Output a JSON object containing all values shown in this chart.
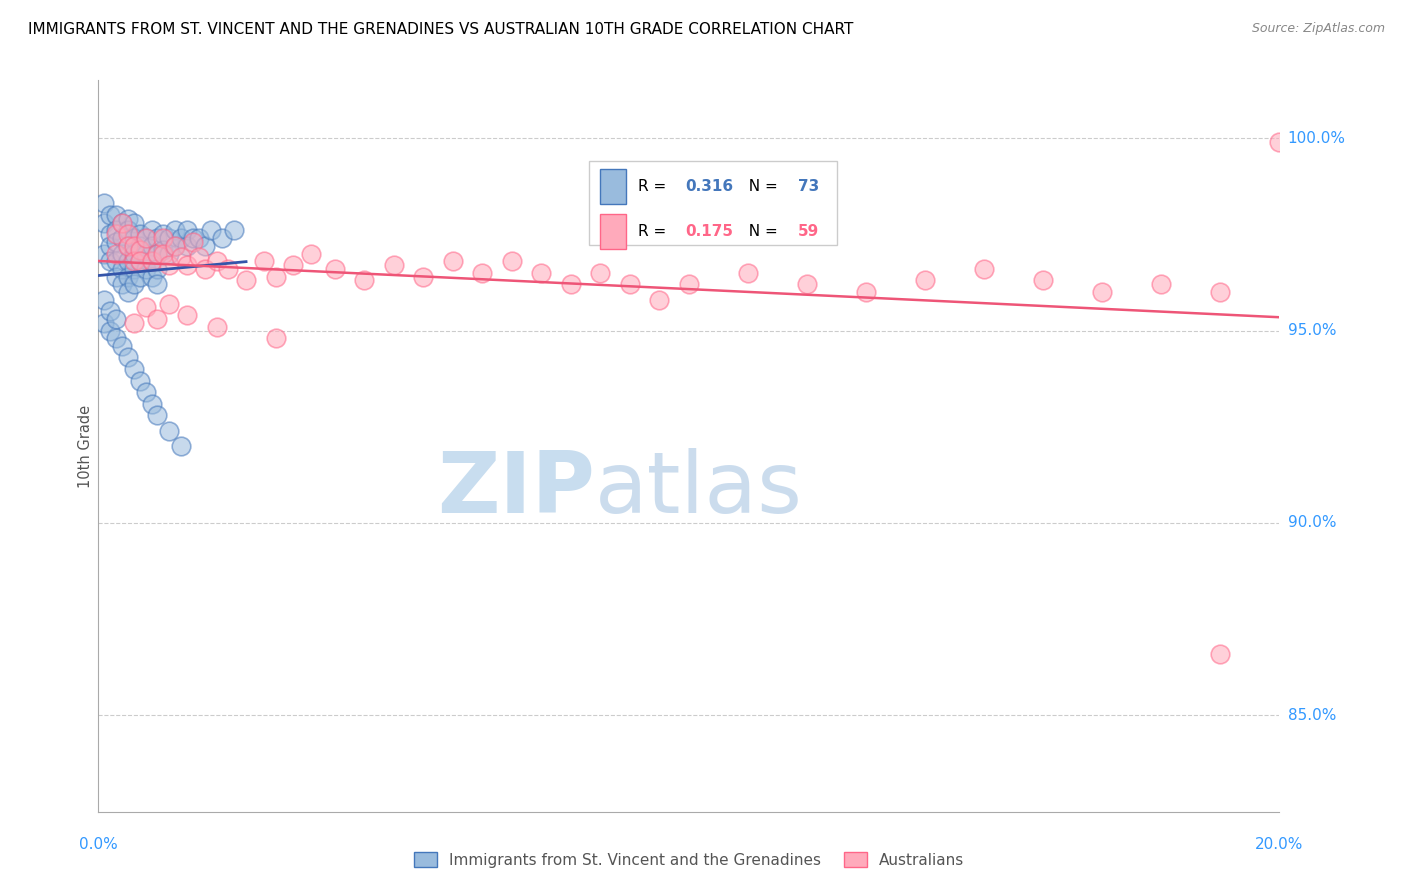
{
  "title": "IMMIGRANTS FROM ST. VINCENT AND THE GRENADINES VS AUSTRALIAN 10TH GRADE CORRELATION CHART",
  "source": "Source: ZipAtlas.com",
  "ylabel": "10th Grade",
  "y_ticks": [
    0.85,
    0.9,
    0.95,
    1.0
  ],
  "y_tick_labels": [
    "85.0%",
    "90.0%",
    "95.0%",
    "100.0%"
  ],
  "xlim": [
    0.0,
    0.2
  ],
  "ylim": [
    0.825,
    1.015
  ],
  "legend_blue_r": "0.316",
  "legend_blue_n": "73",
  "legend_pink_r": "0.175",
  "legend_pink_n": "59",
  "legend_label_blue": "Immigrants from St. Vincent and the Grenadines",
  "legend_label_pink": "Australians",
  "blue_fill": "#99BBDD",
  "pink_fill": "#FFAABB",
  "blue_edge": "#4477BB",
  "pink_edge": "#FF6688",
  "blue_line": "#3355AA",
  "pink_line": "#EE5577",
  "blue_x": [
    0.001,
    0.001,
    0.001,
    0.002,
    0.002,
    0.002,
    0.002,
    0.003,
    0.003,
    0.003,
    0.003,
    0.003,
    0.004,
    0.004,
    0.004,
    0.004,
    0.004,
    0.005,
    0.005,
    0.005,
    0.005,
    0.005,
    0.005,
    0.006,
    0.006,
    0.006,
    0.006,
    0.006,
    0.007,
    0.007,
    0.007,
    0.007,
    0.008,
    0.008,
    0.008,
    0.009,
    0.009,
    0.009,
    0.009,
    0.01,
    0.01,
    0.01,
    0.01,
    0.011,
    0.011,
    0.012,
    0.012,
    0.013,
    0.013,
    0.014,
    0.015,
    0.015,
    0.016,
    0.017,
    0.018,
    0.019,
    0.021,
    0.023,
    0.001,
    0.001,
    0.002,
    0.002,
    0.003,
    0.003,
    0.004,
    0.005,
    0.006,
    0.007,
    0.008,
    0.009,
    0.01,
    0.012,
    0.014
  ],
  "blue_y": [
    0.983,
    0.978,
    0.97,
    0.98,
    0.975,
    0.972,
    0.968,
    0.98,
    0.976,
    0.973,
    0.968,
    0.964,
    0.978,
    0.974,
    0.97,
    0.966,
    0.962,
    0.979,
    0.976,
    0.972,
    0.968,
    0.964,
    0.96,
    0.978,
    0.974,
    0.97,
    0.966,
    0.962,
    0.975,
    0.972,
    0.968,
    0.964,
    0.974,
    0.97,
    0.966,
    0.976,
    0.972,
    0.968,
    0.964,
    0.974,
    0.97,
    0.966,
    0.962,
    0.975,
    0.971,
    0.974,
    0.97,
    0.976,
    0.972,
    0.974,
    0.976,
    0.972,
    0.974,
    0.974,
    0.972,
    0.976,
    0.974,
    0.976,
    0.958,
    0.952,
    0.955,
    0.95,
    0.953,
    0.948,
    0.946,
    0.943,
    0.94,
    0.937,
    0.934,
    0.931,
    0.928,
    0.924,
    0.92
  ],
  "pink_x": [
    0.003,
    0.003,
    0.004,
    0.005,
    0.005,
    0.006,
    0.006,
    0.007,
    0.007,
    0.008,
    0.009,
    0.01,
    0.011,
    0.011,
    0.012,
    0.013,
    0.014,
    0.015,
    0.016,
    0.017,
    0.018,
    0.02,
    0.022,
    0.025,
    0.028,
    0.03,
    0.033,
    0.036,
    0.04,
    0.045,
    0.05,
    0.055,
    0.06,
    0.065,
    0.07,
    0.075,
    0.08,
    0.085,
    0.09,
    0.095,
    0.1,
    0.11,
    0.12,
    0.13,
    0.14,
    0.15,
    0.16,
    0.17,
    0.18,
    0.19,
    0.006,
    0.008,
    0.01,
    0.012,
    0.015,
    0.02,
    0.03,
    0.2,
    0.19
  ],
  "pink_y": [
    0.975,
    0.97,
    0.978,
    0.975,
    0.972,
    0.972,
    0.968,
    0.971,
    0.968,
    0.974,
    0.968,
    0.97,
    0.974,
    0.97,
    0.967,
    0.972,
    0.969,
    0.967,
    0.973,
    0.969,
    0.966,
    0.968,
    0.966,
    0.963,
    0.968,
    0.964,
    0.967,
    0.97,
    0.966,
    0.963,
    0.967,
    0.964,
    0.968,
    0.965,
    0.968,
    0.965,
    0.962,
    0.965,
    0.962,
    0.958,
    0.962,
    0.965,
    0.962,
    0.96,
    0.963,
    0.966,
    0.963,
    0.96,
    0.962,
    0.96,
    0.952,
    0.956,
    0.953,
    0.957,
    0.954,
    0.951,
    0.948,
    0.999,
    0.866
  ]
}
